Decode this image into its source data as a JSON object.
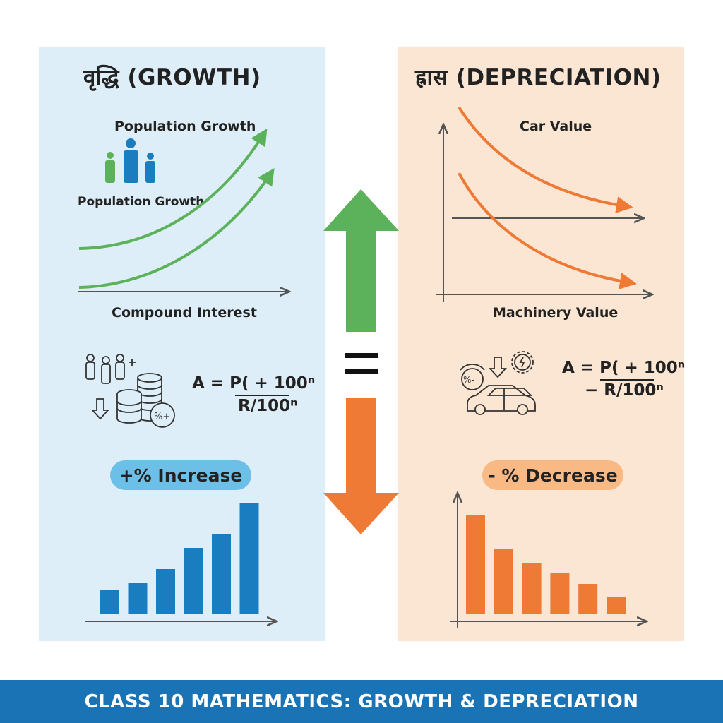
{
  "growth": {
    "title": "वृद्धि (GROWTH)",
    "label_top": "Population Growth",
    "label_mid": "Population Growth",
    "label_axis": "Compound Interest",
    "formula_top": "A = P( + 100ⁿ",
    "formula_bottom": "R/100ⁿ",
    "pill": "+% Increase",
    "color": "#1a7dc0",
    "curve_color": "#5cb25a",
    "icons": [
      "people-icon",
      "coin-stack-icon",
      "percent-badge-icon",
      "down-arrow-icon"
    ]
  },
  "depreciation": {
    "title": "ह्रास (DEPRECIATION)",
    "label_top": "Car Value",
    "label_axis": "Machinery Value",
    "formula_top": "A = P( + 100ⁿ",
    "formula_bottom": "− R/100ⁿ",
    "pill": "- % Decrease",
    "color": "#ee7a35",
    "icons": [
      "car-icon",
      "gear-icon",
      "percent-cycle-icon",
      "down-arrow-icon"
    ]
  },
  "chart_data": [
    {
      "type": "bar",
      "title": "",
      "values": [
        35,
        44,
        64,
        94,
        114,
        157
      ],
      "trend": "increasing"
    },
    {
      "type": "bar",
      "title": "",
      "values": [
        141,
        93,
        73,
        59,
        43,
        24
      ],
      "trend": "decreasing"
    }
  ],
  "center": {
    "up_color": "#5cb25a",
    "down_color": "#ee7a35",
    "symbol": "equals-icon"
  },
  "banner": {
    "text": "CLASS 10 MATHEMATICS: GROWTH & DEPRECIATION",
    "color": "#1a73b5"
  }
}
